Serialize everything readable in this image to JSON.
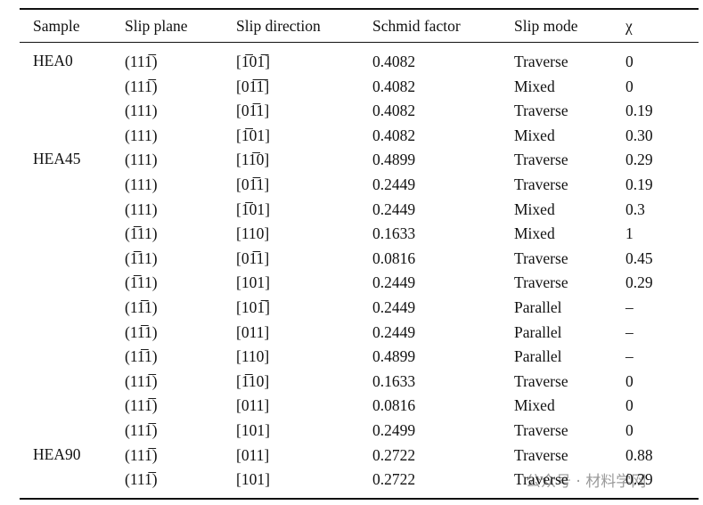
{
  "table": {
    "header": [
      "Sample",
      "Slip plane",
      "Slip direction",
      "Schmid factor",
      "Slip mode",
      "χ"
    ],
    "groups": [
      {
        "sample": "HEA0",
        "rows": [
          [
            "(111̅)",
            "[1̅01̅]",
            "0.4082",
            "Traverse",
            "0"
          ],
          [
            "(111̅)",
            "[01̅1̅]",
            "0.4082",
            "Mixed",
            "0"
          ],
          [
            "(111)",
            "[01̅1]",
            "0.4082",
            "Traverse",
            "0.19"
          ],
          [
            "(111)",
            "[1̅01]",
            "0.4082",
            "Mixed",
            "0.30"
          ]
        ]
      },
      {
        "sample": "HEA45",
        "rows": [
          [
            "(111)",
            "[11̅0]",
            "0.4899",
            "Traverse",
            "0.29"
          ],
          [
            "(111)",
            "[01̅1]",
            "0.2449",
            "Traverse",
            "0.19"
          ],
          [
            "(111)",
            "[1̅01]",
            "0.2449",
            "Mixed",
            "0.3"
          ],
          [
            "(1̅11)",
            "[110]",
            "0.1633",
            "Mixed",
            "1"
          ],
          [
            "(1̅11)",
            "[01̅1]",
            "0.0816",
            "Traverse",
            "0.45"
          ],
          [
            "(1̅11)",
            "[101]",
            "0.2449",
            "Traverse",
            "0.29"
          ],
          [
            "(11̅1)",
            "[101̅]",
            "0.2449",
            "Parallel",
            "–"
          ],
          [
            "(11̅1)",
            "[011]",
            "0.2449",
            "Parallel",
            "–"
          ],
          [
            "(11̅1)",
            "[110]",
            "0.4899",
            "Parallel",
            "–"
          ],
          [
            "(111̅)",
            "[1̅10]",
            "0.1633",
            "Traverse",
            "0"
          ],
          [
            "(111̅)",
            "[011]",
            "0.0816",
            "Mixed",
            "0"
          ],
          [
            "(111̅)",
            "[101]",
            "0.2499",
            "Traverse",
            "0"
          ]
        ]
      },
      {
        "sample": "HEA90",
        "rows": [
          [
            "(111̅)",
            "[011]",
            "0.2722",
            "Traverse",
            "0.88"
          ],
          [
            "(111̅)",
            "[101]",
            "0.2722",
            "Traverse",
            "0.29"
          ]
        ]
      }
    ]
  },
  "watermark": "公众号 · 材料学网"
}
